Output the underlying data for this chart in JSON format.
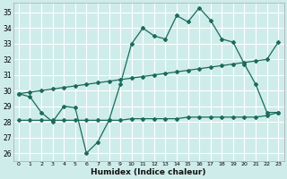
{
  "xlabel": "Humidex (Indice chaleur)",
  "bg_color": "#ceecea",
  "grid_color": "#ffffff",
  "line_color": "#1a6b5a",
  "xlim": [
    -0.5,
    23.5
  ],
  "ylim": [
    25.5,
    35.6
  ],
  "yticks": [
    26,
    27,
    28,
    29,
    30,
    31,
    32,
    33,
    34,
    35
  ],
  "xticks": [
    0,
    1,
    2,
    3,
    4,
    5,
    6,
    7,
    8,
    9,
    10,
    11,
    12,
    13,
    14,
    15,
    16,
    17,
    18,
    19,
    20,
    21,
    22,
    23
  ],
  "line1_x": [
    0,
    1,
    2,
    3,
    4,
    5,
    6,
    7,
    8,
    9,
    10,
    11,
    12,
    13,
    14,
    15,
    16,
    17,
    18,
    19,
    20,
    21,
    22,
    23
  ],
  "line1_y": [
    29.8,
    29.6,
    28.6,
    28.0,
    29.0,
    28.9,
    26.0,
    26.7,
    28.1,
    30.4,
    33.0,
    34.0,
    33.5,
    33.3,
    34.8,
    34.4,
    35.3,
    34.5,
    33.3,
    33.1,
    31.7,
    30.4,
    28.6,
    28.6
  ],
  "line2_x": [
    0,
    1,
    2,
    3,
    4,
    5,
    6,
    7,
    8,
    9,
    10,
    11,
    12,
    13,
    14,
    15,
    16,
    17,
    18,
    19,
    20,
    21,
    22,
    23
  ],
  "line2_y": [
    29.8,
    29.9,
    30.0,
    30.1,
    30.2,
    30.3,
    30.4,
    30.5,
    30.6,
    30.7,
    30.8,
    30.9,
    31.0,
    31.1,
    31.2,
    31.3,
    31.4,
    31.5,
    31.6,
    31.7,
    31.8,
    31.9,
    32.0,
    33.1
  ],
  "line3_x": [
    0,
    1,
    2,
    3,
    4,
    5,
    6,
    7,
    8,
    9,
    10,
    11,
    12,
    13,
    14,
    15,
    16,
    17,
    18,
    19,
    20,
    21,
    22,
    23
  ],
  "line3_y": [
    28.1,
    28.1,
    28.1,
    28.1,
    28.1,
    28.1,
    28.1,
    28.1,
    28.1,
    28.1,
    28.2,
    28.2,
    28.2,
    28.2,
    28.2,
    28.3,
    28.3,
    28.3,
    28.3,
    28.3,
    28.3,
    28.3,
    28.4,
    28.6
  ]
}
